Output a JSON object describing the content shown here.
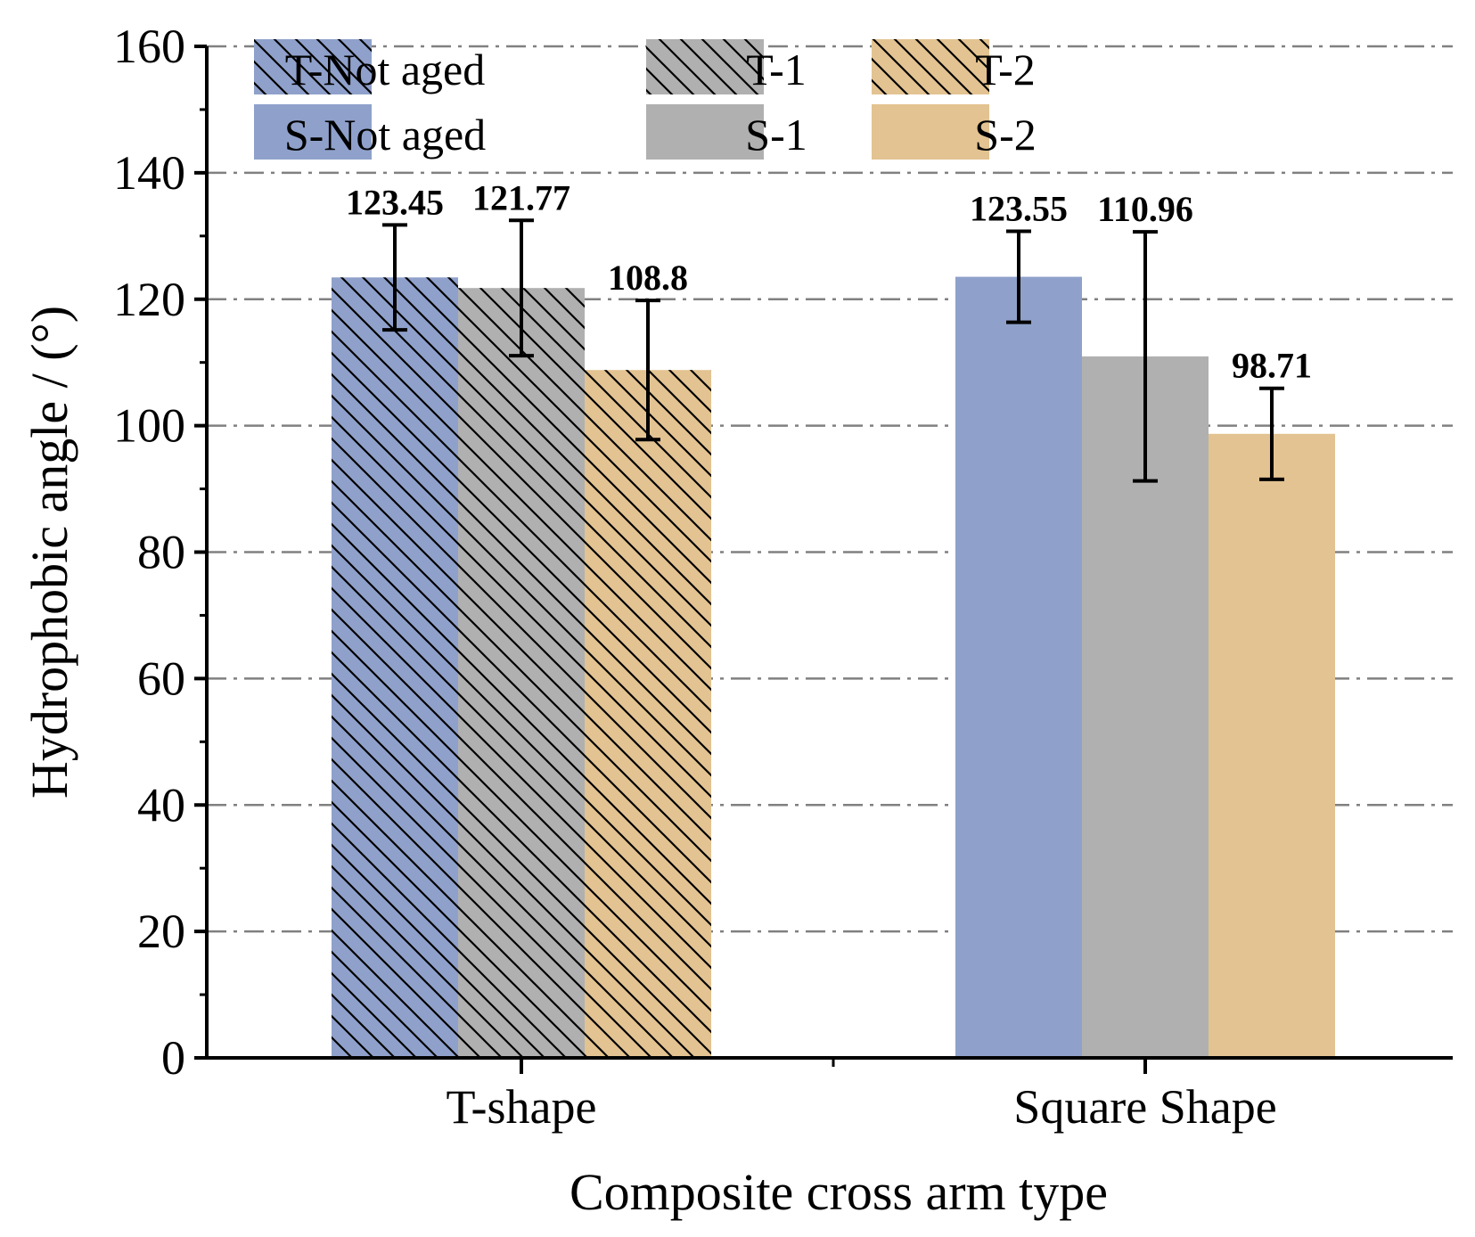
{
  "chart_data": {
    "type": "bar",
    "title": "",
    "xlabel": "Composite cross arm type",
    "ylabel": "Hydrophobic angle / (°)",
    "ylim": [
      0,
      160
    ],
    "yticks": [
      0,
      20,
      40,
      60,
      80,
      100,
      120,
      140,
      160
    ],
    "ytick_labels": [
      "0",
      "20",
      "40",
      "60",
      "80",
      "100",
      "120",
      "140",
      "160"
    ],
    "grid": true,
    "legend_position": "top-left",
    "categories": [
      "T-shape",
      "Square Shape"
    ],
    "series": [
      {
        "name": "T-Not aged",
        "group": 0,
        "slot": 0,
        "value": 123.45,
        "error": 8.3,
        "label": "123.45",
        "color": "#8fa1cb",
        "hatched": true
      },
      {
        "name": "T-1",
        "group": 0,
        "slot": 1,
        "value": 121.77,
        "error": 10.7,
        "label": "121.77",
        "color": "#b0b0b0",
        "hatched": true
      },
      {
        "name": "T-2",
        "group": 0,
        "slot": 2,
        "value": 108.8,
        "error": 11.0,
        "label": "108.8",
        "color": "#e3c391",
        "hatched": true
      },
      {
        "name": "S-Not aged",
        "group": 1,
        "slot": 0,
        "value": 123.55,
        "error": 7.2,
        "label": "123.55",
        "color": "#8fa1cb",
        "hatched": false
      },
      {
        "name": "S-1",
        "group": 1,
        "slot": 1,
        "value": 110.96,
        "error": 19.7,
        "label": "110.96",
        "color": "#b0b0b0",
        "hatched": false
      },
      {
        "name": "S-2",
        "group": 1,
        "slot": 2,
        "value": 98.71,
        "error": 7.2,
        "label": "98.71",
        "color": "#e3c391",
        "hatched": false
      }
    ],
    "legend": [
      {
        "label": "T-Not aged",
        "color": "#8fa1cb",
        "hatched": true
      },
      {
        "label": "T-1",
        "color": "#b0b0b0",
        "hatched": true
      },
      {
        "label": "T-2",
        "color": "#e3c391",
        "hatched": true
      },
      {
        "label": "S-Not aged",
        "color": "#8fa1cb",
        "hatched": false
      },
      {
        "label": "S-1",
        "color": "#b0b0b0",
        "hatched": false
      },
      {
        "label": "S-2",
        "color": "#e3c391",
        "hatched": false
      }
    ]
  }
}
